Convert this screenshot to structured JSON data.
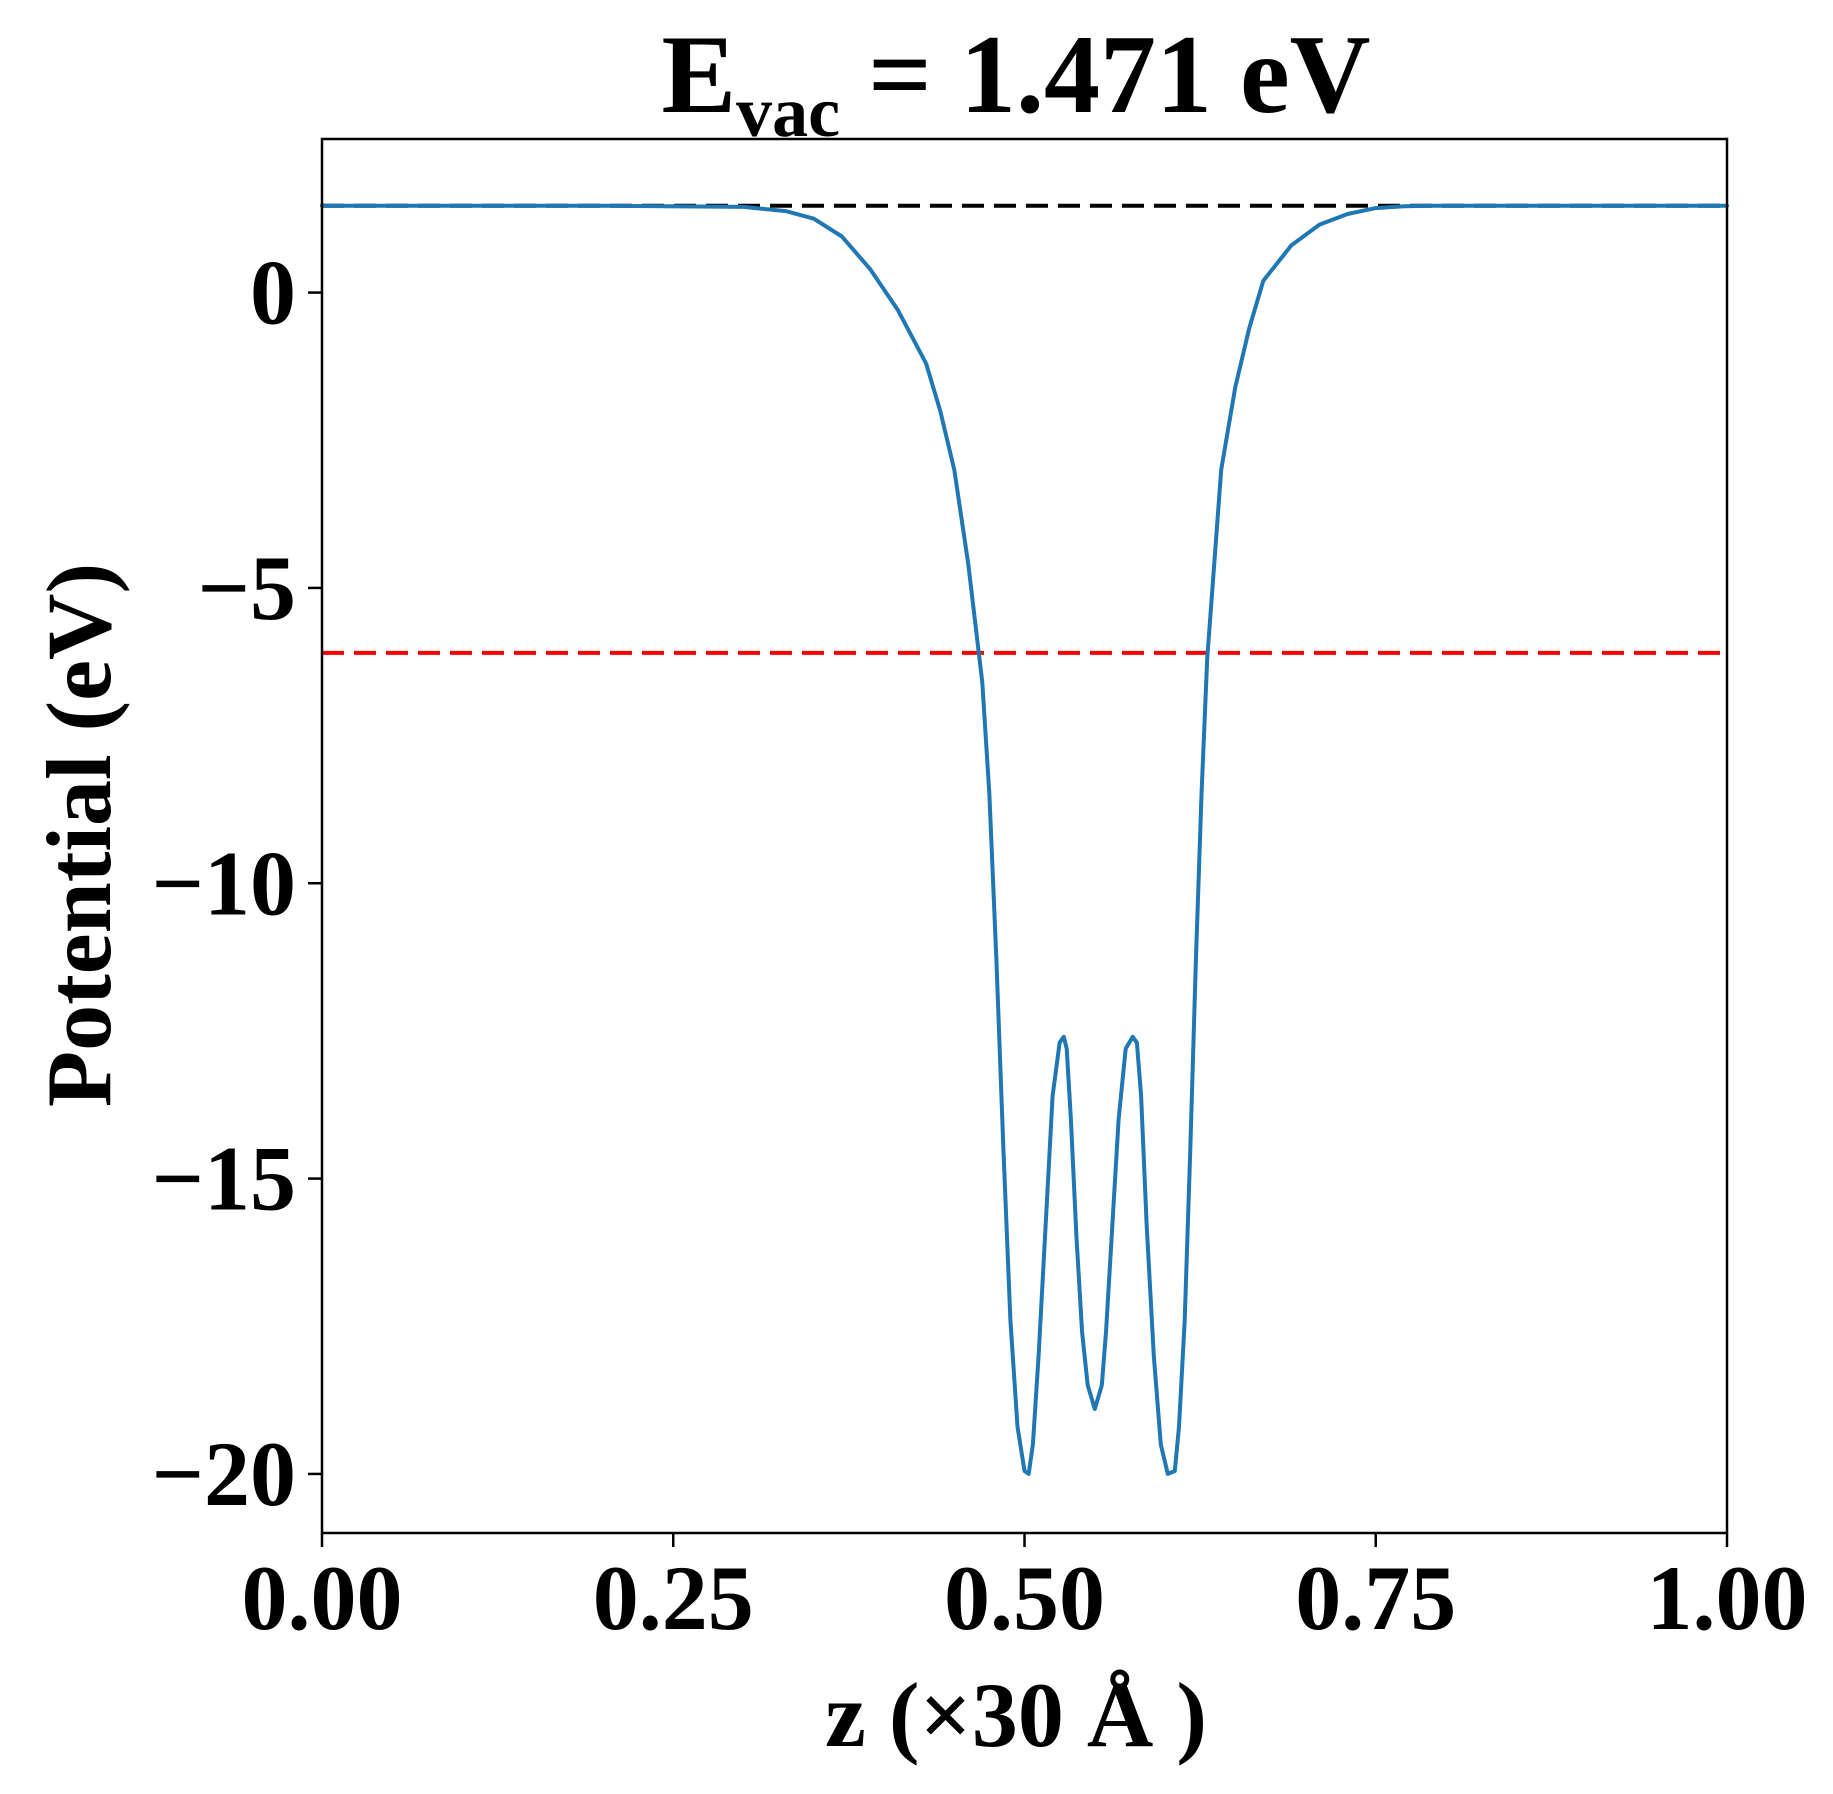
{
  "chart_data": {
    "type": "line",
    "title": {
      "prefix": "E",
      "subscript": "vac",
      "suffix": " = 1.471 eV"
    },
    "xlabel": "z (×30 Å )",
    "ylabel": "Potential (eV)",
    "xlim": [
      0,
      1
    ],
    "ylim": [
      -21,
      2.6
    ],
    "xticks": [
      0,
      0.25,
      0.5,
      0.75,
      1.0
    ],
    "xtick_labels": [
      "0.00",
      "0.25",
      "0.50",
      "0.75",
      "1.00"
    ],
    "yticks": [
      0,
      -5,
      -10,
      -15,
      -20
    ],
    "ytick_labels": [
      "0",
      "−5",
      "−10",
      "−15",
      "−20"
    ],
    "grid": false,
    "reference_lines": [
      {
        "y": 1.471,
        "color": "#000000",
        "style": "dashed"
      },
      {
        "y": -6.1,
        "color": "#ff0000",
        "style": "dashed"
      }
    ],
    "series": [
      {
        "color": "#1f77b4",
        "x": [
          0.0,
          0.1,
          0.2,
          0.3,
          0.33,
          0.35,
          0.37,
          0.39,
          0.41,
          0.43,
          0.44,
          0.45,
          0.46,
          0.47,
          0.475,
          0.48,
          0.485,
          0.49,
          0.495,
          0.5,
          0.503,
          0.506,
          0.51,
          0.515,
          0.52,
          0.525,
          0.528,
          0.53,
          0.533,
          0.537,
          0.541,
          0.545,
          0.55,
          0.555,
          0.558,
          0.562,
          0.567,
          0.572,
          0.577,
          0.58,
          0.583,
          0.587,
          0.592,
          0.597,
          0.602,
          0.607,
          0.61,
          0.614,
          0.618,
          0.622,
          0.626,
          0.63,
          0.635,
          0.64,
          0.65,
          0.66,
          0.67,
          0.69,
          0.71,
          0.73,
          0.75,
          0.77,
          0.79,
          0.81,
          0.9,
          1.0
        ],
        "y": [
          1.47,
          1.47,
          1.47,
          1.45,
          1.38,
          1.25,
          0.95,
          0.4,
          -0.3,
          -1.2,
          -2.0,
          -3.0,
          -4.6,
          -6.6,
          -8.5,
          -11.3,
          -14.5,
          -17.4,
          -19.2,
          -19.95,
          -20.0,
          -19.5,
          -18.0,
          -15.8,
          -13.6,
          -12.7,
          -12.6,
          -12.8,
          -14.0,
          -16.0,
          -17.6,
          -18.5,
          -18.9,
          -18.5,
          -17.6,
          -16.0,
          -14.0,
          -12.8,
          -12.6,
          -12.7,
          -13.6,
          -15.8,
          -18.0,
          -19.5,
          -20.0,
          -19.95,
          -19.2,
          -17.4,
          -14.5,
          -11.3,
          -8.5,
          -6.2,
          -4.6,
          -3.0,
          -1.6,
          -0.6,
          0.2,
          0.8,
          1.15,
          1.33,
          1.43,
          1.46,
          1.47,
          1.47,
          1.47,
          1.47
        ]
      }
    ]
  }
}
